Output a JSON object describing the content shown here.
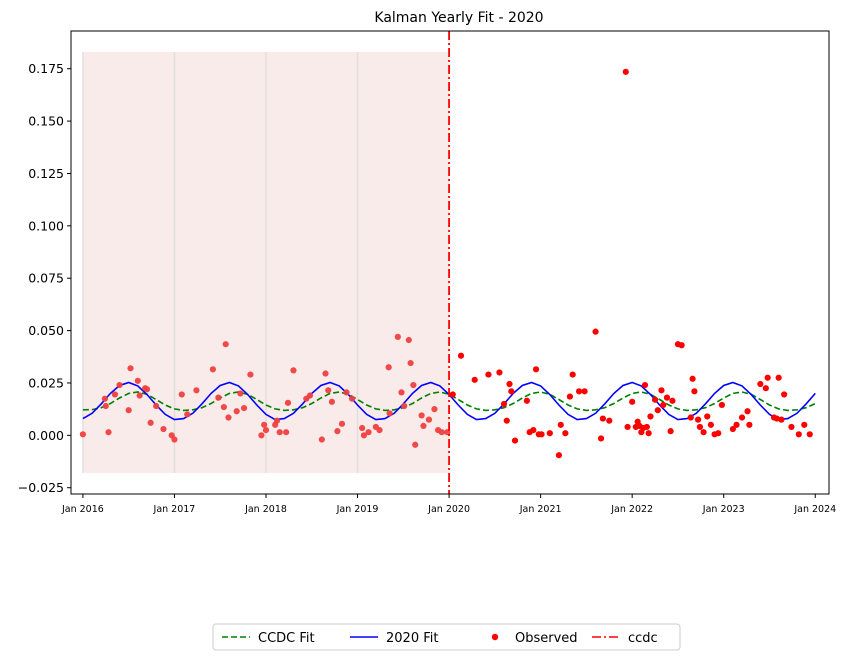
{
  "chart_data": {
    "type": "scatter",
    "title": "Kalman Yearly Fit - 2020",
    "xlabel": "",
    "ylabel": "",
    "xlim": [
      2015.87,
      2024.15
    ],
    "ylim": [
      -0.028,
      0.193
    ],
    "x_ticks": [
      {
        "value": 2016,
        "label": "Jan 2016"
      },
      {
        "value": 2017,
        "label": "Jan 2017"
      },
      {
        "value": 2018,
        "label": "Jan 2018"
      },
      {
        "value": 2019,
        "label": "Jan 2019"
      },
      {
        "value": 2020,
        "label": "Jan 2020"
      },
      {
        "value": 2021,
        "label": "Jan 2021"
      },
      {
        "value": 2022,
        "label": "Jan 2022"
      },
      {
        "value": 2023,
        "label": "Jan 2023"
      },
      {
        "value": 2024,
        "label": "Jan 2024"
      }
    ],
    "y_ticks": [
      {
        "value": -0.025,
        "label": "−0.025"
      },
      {
        "value": 0.0,
        "label": "0.000"
      },
      {
        "value": 0.025,
        "label": "0.025"
      },
      {
        "value": 0.05,
        "label": "0.050"
      },
      {
        "value": 0.075,
        "label": "0.075"
      },
      {
        "value": 0.1,
        "label": "0.100"
      },
      {
        "value": 0.125,
        "label": "0.125"
      },
      {
        "value": 0.15,
        "label": "0.150"
      },
      {
        "value": 0.175,
        "label": "0.175"
      }
    ],
    "training_band": {
      "x0": 2016.0,
      "x1": 2020.0,
      "y0": -0.018,
      "y1": 0.183,
      "color": "#f9ebe9"
    },
    "vertical_gridlines_x": [
      2016.0,
      2017.0,
      2018.0,
      2019.0
    ],
    "series": [
      {
        "name": "CCDC Fit",
        "style": "dashed",
        "color": "#008000",
        "x": [
          2016.0,
          2016.1,
          2016.2,
          2016.3,
          2016.4,
          2016.5,
          2016.6,
          2016.7,
          2016.8,
          2016.9,
          2017.0,
          2017.1,
          2017.2,
          2017.3,
          2017.4,
          2017.5,
          2017.6,
          2017.7,
          2017.8,
          2017.9,
          2018.0,
          2018.1,
          2018.2,
          2018.3,
          2018.4,
          2018.5,
          2018.6,
          2018.7,
          2018.8,
          2018.9,
          2019.0,
          2019.1,
          2019.2,
          2019.3,
          2019.4,
          2019.5,
          2019.6,
          2019.7,
          2019.8,
          2019.9,
          2020.0,
          2020.1,
          2020.2,
          2020.3,
          2020.4,
          2020.5,
          2020.6,
          2020.7,
          2020.8,
          2020.9,
          2021.0,
          2021.1,
          2021.2,
          2021.3,
          2021.4,
          2021.5,
          2021.6,
          2021.7,
          2021.8,
          2021.9,
          2022.0,
          2022.1,
          2022.2,
          2022.3,
          2022.4,
          2022.5,
          2022.6,
          2022.7,
          2022.8,
          2022.9,
          2023.0,
          2023.1,
          2023.2,
          2023.3,
          2023.4,
          2023.5,
          2023.6,
          2023.7,
          2023.8,
          2023.9,
          2024.0
        ],
        "y": [
          0.0122,
          0.0123,
          0.0132,
          0.0152,
          0.0178,
          0.02,
          0.0207,
          0.0196,
          0.0171,
          0.0145,
          0.0126,
          0.0119,
          0.0122,
          0.0132,
          0.0152,
          0.0178,
          0.02,
          0.0207,
          0.0196,
          0.0171,
          0.0145,
          0.0126,
          0.0119,
          0.0122,
          0.0132,
          0.0152,
          0.0178,
          0.02,
          0.0207,
          0.0196,
          0.0171,
          0.0145,
          0.0126,
          0.0119,
          0.0122,
          0.0132,
          0.0152,
          0.0178,
          0.02,
          0.0207,
          0.0196,
          0.0171,
          0.0145,
          0.0126,
          0.0119,
          0.0122,
          0.0132,
          0.0152,
          0.0178,
          0.02,
          0.0207,
          0.0196,
          0.0171,
          0.0145,
          0.0126,
          0.0119,
          0.0122,
          0.0132,
          0.0152,
          0.0178,
          0.02,
          0.0207,
          0.0196,
          0.0171,
          0.0145,
          0.0126,
          0.0119,
          0.0122,
          0.0132,
          0.0152,
          0.0178,
          0.02,
          0.0207,
          0.0196,
          0.0171,
          0.0145,
          0.0126,
          0.0119,
          0.0122,
          0.0132,
          0.0152
        ]
      },
      {
        "name": "2020 Fit",
        "style": "solid",
        "color": "#0000ff",
        "x": [
          2016.0,
          2016.1,
          2016.2,
          2016.3,
          2016.4,
          2016.5,
          2016.6,
          2016.7,
          2016.8,
          2016.9,
          2017.0,
          2017.1,
          2017.2,
          2017.3,
          2017.4,
          2017.5,
          2017.6,
          2017.7,
          2017.8,
          2017.9,
          2018.0,
          2018.1,
          2018.2,
          2018.3,
          2018.4,
          2018.5,
          2018.6,
          2018.7,
          2018.8,
          2018.9,
          2019.0,
          2019.1,
          2019.2,
          2019.3,
          2019.4,
          2019.5,
          2019.6,
          2019.7,
          2019.8,
          2019.9,
          2020.0,
          2020.1,
          2020.2,
          2020.3,
          2020.4,
          2020.5,
          2020.6,
          2020.7,
          2020.8,
          2020.9,
          2021.0,
          2021.1,
          2021.2,
          2021.3,
          2021.4,
          2021.5,
          2021.6,
          2021.7,
          2021.8,
          2021.9,
          2022.0,
          2022.1,
          2022.2,
          2022.3,
          2022.4,
          2022.5,
          2022.6,
          2022.7,
          2022.8,
          2022.9,
          2023.0,
          2023.1,
          2023.2,
          2023.3,
          2023.4,
          2023.5,
          2023.6,
          2023.7,
          2023.8,
          2023.9,
          2024.0
        ],
        "y": [
          0.008,
          0.0105,
          0.015,
          0.02,
          0.0238,
          0.0252,
          0.0236,
          0.0195,
          0.0145,
          0.01,
          0.0075,
          0.008,
          0.0105,
          0.015,
          0.02,
          0.0238,
          0.0252,
          0.0236,
          0.0195,
          0.0145,
          0.01,
          0.0075,
          0.008,
          0.0105,
          0.015,
          0.02,
          0.0238,
          0.0252,
          0.0236,
          0.0195,
          0.0145,
          0.01,
          0.0075,
          0.008,
          0.0105,
          0.015,
          0.02,
          0.0238,
          0.0252,
          0.0236,
          0.0195,
          0.0145,
          0.01,
          0.0075,
          0.008,
          0.0105,
          0.015,
          0.02,
          0.0238,
          0.0252,
          0.0236,
          0.0195,
          0.0145,
          0.01,
          0.0075,
          0.008,
          0.0105,
          0.015,
          0.02,
          0.0238,
          0.0252,
          0.0236,
          0.0195,
          0.0145,
          0.01,
          0.0075,
          0.008,
          0.0105,
          0.015,
          0.02,
          0.0238,
          0.0252,
          0.0236,
          0.0195,
          0.0145,
          0.01,
          0.0075,
          0.008,
          0.0105,
          0.015,
          0.02
        ]
      }
    ],
    "observed": {
      "name": "Observed",
      "color": "#ff0000",
      "training_color": "#f04040",
      "points": [
        [
          2016.0,
          0.0005
        ],
        [
          2016.24,
          0.0175
        ],
        [
          2016.25,
          0.014
        ],
        [
          2016.28,
          0.0015
        ],
        [
          2016.35,
          0.0195
        ],
        [
          2016.4,
          0.024
        ],
        [
          2016.5,
          0.012
        ],
        [
          2016.52,
          0.032
        ],
        [
          2016.6,
          0.026
        ],
        [
          2016.62,
          0.019
        ],
        [
          2016.68,
          0.0225
        ],
        [
          2016.7,
          0.022
        ],
        [
          2016.74,
          0.006
        ],
        [
          2016.8,
          0.014
        ],
        [
          2016.88,
          0.003
        ],
        [
          2016.97,
          0.0
        ],
        [
          2017.0,
          -0.002
        ],
        [
          2017.08,
          0.0195
        ],
        [
          2017.14,
          0.01
        ],
        [
          2017.24,
          0.0215
        ],
        [
          2017.42,
          0.0315
        ],
        [
          2017.48,
          0.018
        ],
        [
          2017.54,
          0.0135
        ],
        [
          2017.56,
          0.0435
        ],
        [
          2017.59,
          0.0085
        ],
        [
          2017.68,
          0.0115
        ],
        [
          2017.72,
          0.02
        ],
        [
          2017.76,
          0.013
        ],
        [
          2017.83,
          0.029
        ],
        [
          2017.95,
          0.0
        ],
        [
          2017.98,
          0.005
        ],
        [
          2018.0,
          0.0025
        ],
        [
          2018.1,
          0.005
        ],
        [
          2018.12,
          0.007
        ],
        [
          2018.15,
          0.0015
        ],
        [
          2018.22,
          0.0015
        ],
        [
          2018.24,
          0.0155
        ],
        [
          2018.3,
          0.031
        ],
        [
          2018.44,
          0.0175
        ],
        [
          2018.48,
          0.019
        ],
        [
          2018.61,
          -0.002
        ],
        [
          2018.65,
          0.0295
        ],
        [
          2018.68,
          0.0215
        ],
        [
          2018.72,
          0.016
        ],
        [
          2018.78,
          0.002
        ],
        [
          2018.83,
          0.0055
        ],
        [
          2018.88,
          0.0205
        ],
        [
          2018.94,
          0.0175
        ],
        [
          2019.05,
          0.0035
        ],
        [
          2019.07,
          0.0
        ],
        [
          2019.12,
          0.0015
        ],
        [
          2019.2,
          0.004
        ],
        [
          2019.24,
          0.0025
        ],
        [
          2019.34,
          0.0325
        ],
        [
          2019.35,
          0.0105
        ],
        [
          2019.44,
          0.047
        ],
        [
          2019.48,
          0.0205
        ],
        [
          2019.51,
          0.014
        ],
        [
          2019.56,
          0.0455
        ],
        [
          2019.58,
          0.0345
        ],
        [
          2019.61,
          0.024
        ],
        [
          2019.63,
          -0.0045
        ],
        [
          2019.7,
          0.0095
        ],
        [
          2019.72,
          0.0045
        ],
        [
          2019.78,
          0.0075
        ],
        [
          2019.84,
          0.0125
        ],
        [
          2019.88,
          0.0025
        ],
        [
          2019.92,
          0.0015
        ],
        [
          2019.98,
          0.0015
        ],
        [
          2020.04,
          0.0195
        ],
        [
          2020.13,
          0.038
        ],
        [
          2020.28,
          0.0265
        ],
        [
          2020.43,
          0.029
        ],
        [
          2020.55,
          0.03
        ],
        [
          2020.6,
          0.015
        ],
        [
          2020.63,
          0.007
        ],
        [
          2020.66,
          0.0245
        ],
        [
          2020.68,
          0.021
        ],
        [
          2020.72,
          -0.0025
        ],
        [
          2020.85,
          0.0165
        ],
        [
          2020.88,
          0.0015
        ],
        [
          2020.92,
          0.0025
        ],
        [
          2020.95,
          0.0315
        ],
        [
          2020.98,
          0.0005
        ],
        [
          2021.01,
          0.0005
        ],
        [
          2021.1,
          0.001
        ],
        [
          2021.2,
          -0.0095
        ],
        [
          2021.22,
          0.005
        ],
        [
          2021.27,
          0.001
        ],
        [
          2021.32,
          0.0185
        ],
        [
          2021.35,
          0.029
        ],
        [
          2021.42,
          0.021
        ],
        [
          2021.48,
          0.021
        ],
        [
          2021.6,
          0.0495
        ],
        [
          2021.66,
          -0.0015
        ],
        [
          2021.68,
          0.008
        ],
        [
          2021.75,
          0.007
        ],
        [
          2021.93,
          0.1735
        ],
        [
          2021.95,
          0.004
        ],
        [
          2022.0,
          0.016
        ],
        [
          2022.04,
          0.004
        ],
        [
          2022.06,
          0.0065
        ],
        [
          2022.08,
          0.0045
        ],
        [
          2022.1,
          0.0015
        ],
        [
          2022.12,
          0.0035
        ],
        [
          2022.14,
          0.024
        ],
        [
          2022.16,
          0.004
        ],
        [
          2022.18,
          0.001
        ],
        [
          2022.2,
          0.009
        ],
        [
          2022.25,
          0.017
        ],
        [
          2022.28,
          0.012
        ],
        [
          2022.32,
          0.0215
        ],
        [
          2022.34,
          0.0145
        ],
        [
          2022.38,
          0.018
        ],
        [
          2022.42,
          0.002
        ],
        [
          2022.44,
          0.0165
        ],
        [
          2022.5,
          0.0435
        ],
        [
          2022.54,
          0.043
        ],
        [
          2022.64,
          0.0085
        ],
        [
          2022.66,
          0.027
        ],
        [
          2022.68,
          0.021
        ],
        [
          2022.72,
          0.0075
        ],
        [
          2022.74,
          0.004
        ],
        [
          2022.78,
          0.0015
        ],
        [
          2022.82,
          0.009
        ],
        [
          2022.86,
          0.005
        ],
        [
          2022.9,
          0.0005
        ],
        [
          2022.94,
          0.001
        ],
        [
          2022.98,
          0.0145
        ],
        [
          2023.1,
          0.003
        ],
        [
          2023.14,
          0.005
        ],
        [
          2023.2,
          0.0085
        ],
        [
          2023.26,
          0.0115
        ],
        [
          2023.28,
          0.005
        ],
        [
          2023.4,
          0.0245
        ],
        [
          2023.46,
          0.0225
        ],
        [
          2023.48,
          0.0275
        ],
        [
          2023.55,
          0.0085
        ],
        [
          2023.58,
          0.008
        ],
        [
          2023.6,
          0.0275
        ],
        [
          2023.63,
          0.0075
        ],
        [
          2023.66,
          0.0195
        ],
        [
          2023.74,
          0.004
        ],
        [
          2023.82,
          0.0005
        ],
        [
          2023.88,
          0.005
        ],
        [
          2023.94,
          0.0005
        ]
      ]
    },
    "ccdc_break": {
      "name": "ccdc",
      "x": 2020.0,
      "color": "#ff0000",
      "style": "dashdot"
    },
    "legend": {
      "placement": "bottom-center",
      "entries": [
        {
          "label": "CCDC Fit",
          "kind": "dashed-line",
          "color": "#008000"
        },
        {
          "label": "2020 Fit",
          "kind": "solid-line",
          "color": "#0000ff"
        },
        {
          "label": "Observed",
          "kind": "marker",
          "color": "#ff0000"
        },
        {
          "label": "ccdc",
          "kind": "dashdot-line",
          "color": "#ff0000"
        }
      ]
    },
    "grid": false
  }
}
